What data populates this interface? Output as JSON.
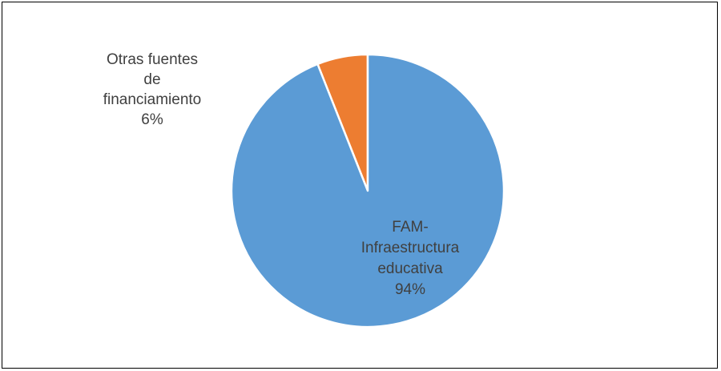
{
  "chart_data": {
    "type": "pie",
    "title": "",
    "slices": [
      {
        "label_lines": [
          "Otras fuentes",
          "de",
          "financiamiento"
        ],
        "percent_label": "6%",
        "value": 6,
        "color": "#ED7D31",
        "label_color": "#404040"
      },
      {
        "label_lines": [
          "FAM-",
          "Infraestructura",
          "educativa"
        ],
        "percent_label": "94%",
        "value": 94,
        "color": "#5B9BD5",
        "label_color": "#404040"
      }
    ],
    "start_angle_deg": 0,
    "direction": "counterclockwise",
    "border_color": "#ffffff",
    "legend": "none"
  }
}
